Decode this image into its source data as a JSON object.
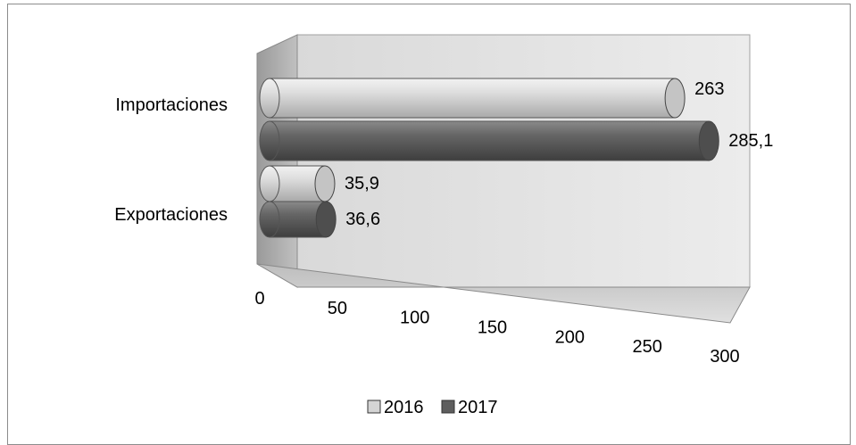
{
  "chart_data": {
    "type": "bar",
    "orientation": "horizontal",
    "style": "3d-cylinder",
    "categories": [
      "Importaciones",
      "Exportaciones"
    ],
    "series": [
      {
        "name": "2016",
        "values": [
          263,
          35.9
        ],
        "color": "#d4d4d4"
      },
      {
        "name": "2017",
        "values": [
          285.1,
          36.6
        ],
        "color": "#5e5e5e"
      }
    ],
    "data_labels": [
      [
        "263",
        "35,9"
      ],
      [
        "285,1",
        "36,6"
      ]
    ],
    "xlim": [
      0,
      300
    ],
    "x_ticks": [
      "0",
      "50",
      "100",
      "150",
      "200",
      "250",
      "300"
    ],
    "grid": false,
    "legend_position": "bottom"
  }
}
